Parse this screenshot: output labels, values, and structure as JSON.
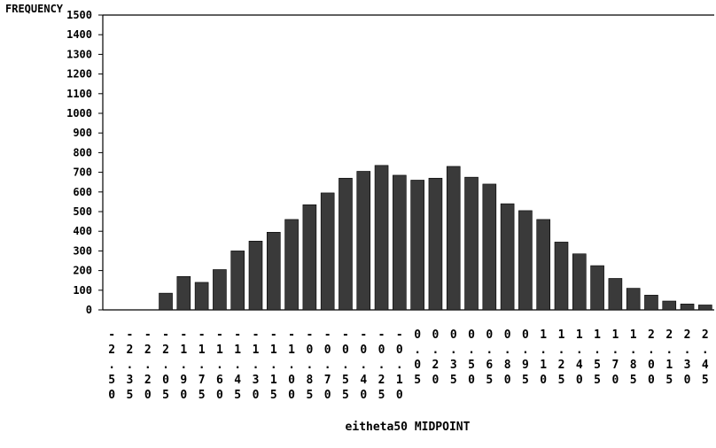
{
  "chart_data": {
    "type": "bar",
    "ylabel": "FREQUENCY",
    "xlabel": "eitheta50 MIDPOINT",
    "ylim": [
      0,
      1500
    ],
    "yticks": [
      0,
      100,
      200,
      300,
      400,
      500,
      600,
      700,
      800,
      900,
      1000,
      1100,
      1200,
      1300,
      1400,
      1500
    ],
    "categories": [
      "-2.50",
      "-2.35",
      "-2.20",
      "-2.05",
      "-1.90",
      "-1.75",
      "-1.60",
      "-1.45",
      "-1.30",
      "-1.15",
      "-1.00",
      "-0.85",
      "-0.70",
      "-0.55",
      "-0.40",
      "-0.25",
      "-0.10",
      "0.05",
      "0.20",
      "0.35",
      "0.50",
      "0.65",
      "0.80",
      "0.95",
      "1.10",
      "1.25",
      "1.40",
      "1.55",
      "1.70",
      "1.85",
      "2.00",
      "2.15",
      "2.30",
      "2.45"
    ],
    "tick_label_rows": [
      [
        "-",
        "-",
        "-",
        "-",
        "-",
        "-",
        "-",
        "-",
        "-",
        "-",
        "-",
        "-",
        "-",
        "-",
        "-",
        "-",
        "-",
        "0",
        "0",
        "0",
        "0",
        "0",
        "0",
        "0",
        "1",
        "1",
        "1",
        "1",
        "1",
        "1",
        "2",
        "2",
        "2",
        "2"
      ],
      [
        "2",
        "2",
        "2",
        "2",
        "1",
        "1",
        "1",
        "1",
        "1",
        "1",
        "1",
        "0",
        "0",
        "0",
        "0",
        "0",
        "0",
        ".",
        ".",
        ".",
        ".",
        ".",
        ".",
        ".",
        ".",
        ".",
        ".",
        ".",
        ".",
        ".",
        ".",
        ".",
        ".",
        "."
      ],
      [
        ".",
        ".",
        ".",
        ".",
        ".",
        ".",
        ".",
        ".",
        ".",
        ".",
        ".",
        ".",
        ".",
        ".",
        ".",
        ".",
        ".",
        "0",
        "2",
        "3",
        "5",
        "6",
        "8",
        "9",
        "1",
        "2",
        "4",
        "5",
        "7",
        "8",
        "0",
        "1",
        "3",
        "4"
      ],
      [
        "5",
        "3",
        "2",
        "0",
        "9",
        "7",
        "6",
        "4",
        "3",
        "1",
        "0",
        "8",
        "7",
        "5",
        "4",
        "2",
        "1",
        "5",
        "0",
        "5",
        "0",
        "5",
        "0",
        "5",
        "0",
        "5",
        "0",
        "5",
        "0",
        "5",
        "0",
        "5",
        "0",
        "5"
      ],
      [
        "0",
        "5",
        "0",
        "5",
        "0",
        "5",
        "0",
        "5",
        "0",
        "5",
        "0",
        "5",
        "0",
        "5",
        "0",
        "5",
        "0",
        "",
        "",
        "",
        "",
        "",
        "",
        "",
        "",
        "",
        "",
        "",
        "",
        "",
        "",
        "",
        "",
        ""
      ]
    ],
    "values": [
      0,
      0,
      0,
      85,
      170,
      140,
      205,
      300,
      350,
      395,
      460,
      535,
      595,
      670,
      705,
      735,
      685,
      660,
      670,
      730,
      675,
      640,
      540,
      505,
      460,
      345,
      285,
      225,
      160,
      110,
      75,
      45,
      30,
      25
    ],
    "colors": {
      "bar": "#3a3a3a",
      "axis": "#000000",
      "background": "#ffffff"
    },
    "grid": false
  }
}
